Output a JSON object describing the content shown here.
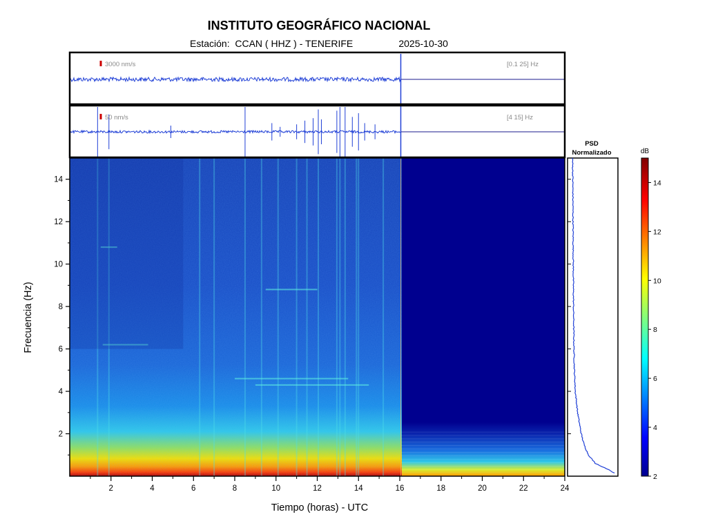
{
  "header": {
    "title": "INSTITUTO GEOGRÁFICO NACIONAL",
    "station_label": "Estación:",
    "station_value": "CCAN ( HHZ ) - TENERIFE",
    "date": "2025-10-30"
  },
  "colors": {
    "trace": "#1f3fd6",
    "cutoff_line": "#1a1a8c",
    "scale_marker": "#cc0000",
    "spectrogram_empty": "#00008f"
  },
  "chart_data": [
    {
      "type": "line",
      "panel": "seismogram-broadband",
      "scale_label": "3000 nm/s",
      "band_label": "[0.1 25] Hz",
      "x_range": [
        0,
        24
      ],
      "data_end_hour": 16.05,
      "spikes": []
    },
    {
      "type": "line",
      "panel": "seismogram-filtered",
      "scale_label": "50 nm/s",
      "band_label": "[4 15] Hz",
      "x_range": [
        0,
        24
      ],
      "data_end_hour": 16.05,
      "spikes": [
        {
          "x": 1.35,
          "amp": 1.0
        },
        {
          "x": 1.9,
          "amp": 0.7
        },
        {
          "x": 4.9,
          "amp": 0.25
        },
        {
          "x": 8.5,
          "amp": 1.0
        },
        {
          "x": 9.8,
          "amp": 0.35
        },
        {
          "x": 10.2,
          "amp": 0.2
        },
        {
          "x": 11.0,
          "amp": 0.3
        },
        {
          "x": 11.4,
          "amp": 0.45
        },
        {
          "x": 11.8,
          "amp": 0.55
        },
        {
          "x": 12.05,
          "amp": 0.9
        },
        {
          "x": 12.2,
          "amp": 0.5
        },
        {
          "x": 12.95,
          "amp": 0.85
        },
        {
          "x": 13.1,
          "amp": 1.0
        },
        {
          "x": 13.35,
          "amp": 1.0
        },
        {
          "x": 13.7,
          "amp": 0.6
        },
        {
          "x": 14.0,
          "amp": 0.75
        },
        {
          "x": 14.3,
          "amp": 0.35
        },
        {
          "x": 14.8,
          "amp": 0.3
        }
      ]
    },
    {
      "type": "heatmap",
      "panel": "spectrogram",
      "xlabel": "Tiempo (horas) - UTC",
      "ylabel": "Frecuencia (Hz)",
      "xlim": [
        0,
        24
      ],
      "ylim": [
        0,
        15
      ],
      "x_ticks": [
        2,
        4,
        6,
        8,
        10,
        12,
        14,
        16,
        18,
        20,
        22,
        24
      ],
      "y_ticks": [
        2,
        4,
        6,
        8,
        10,
        12,
        14
      ],
      "data_end_hour": 16.05,
      "vertical_events_hours": [
        1.35,
        1.9,
        6.3,
        7.0,
        8.5,
        9.3,
        10.1,
        11.0,
        11.5,
        12.05,
        12.95,
        13.1,
        13.35,
        13.9,
        14.0,
        15.2
      ],
      "harmonic_lines": [
        {
          "freq": 10.8,
          "from": 1.5,
          "to": 2.3
        },
        {
          "freq": 6.2,
          "from": 1.6,
          "to": 3.8
        },
        {
          "freq": 4.6,
          "from": 8.0,
          "to": 13.5
        },
        {
          "freq": 4.3,
          "from": 9.0,
          "to": 14.5
        },
        {
          "freq": 8.8,
          "from": 9.5,
          "to": 12.0
        }
      ]
    },
    {
      "type": "line",
      "panel": "psd",
      "title": "PSD",
      "subtitle": "Normalizado",
      "ylim": [
        0,
        15
      ],
      "psd_curve": [
        {
          "f": 0.1,
          "v": 1.0
        },
        {
          "f": 0.3,
          "v": 0.85
        },
        {
          "f": 0.6,
          "v": 0.55
        },
        {
          "f": 1.0,
          "v": 0.4
        },
        {
          "f": 1.5,
          "v": 0.3
        },
        {
          "f": 2.0,
          "v": 0.24
        },
        {
          "f": 3.0,
          "v": 0.16
        },
        {
          "f": 4.0,
          "v": 0.11
        },
        {
          "f": 5.0,
          "v": 0.09
        },
        {
          "f": 6.0,
          "v": 0.08
        },
        {
          "f": 8.0,
          "v": 0.07
        },
        {
          "f": 10.0,
          "v": 0.065
        },
        {
          "f": 12.0,
          "v": 0.06
        },
        {
          "f": 14.0,
          "v": 0.055
        },
        {
          "f": 15.0,
          "v": 0.05
        }
      ]
    },
    {
      "type": "colorbar",
      "panel": "colorbar",
      "unit_label": "dB",
      "range": [
        2,
        15
      ],
      "ticks": [
        2,
        4,
        6,
        8,
        10,
        12,
        14
      ]
    }
  ]
}
